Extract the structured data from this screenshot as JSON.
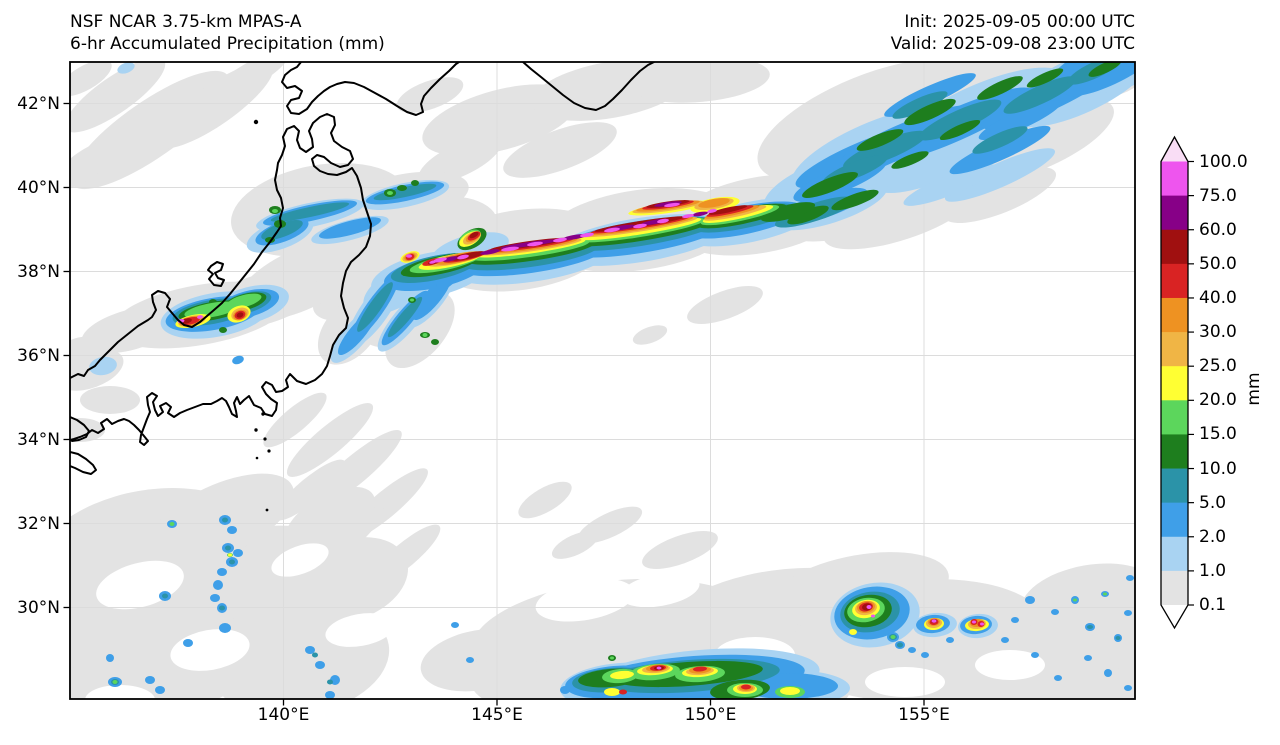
{
  "header": {
    "title_line1": "NSF NCAR 3.75-km MPAS-A",
    "title_line2": "6-hr Accumulated Precipitation (mm)",
    "init_time": "Init: 2025-09-05 00:00 UTC",
    "valid_time": "Valid: 2025-09-08 23:00 UTC"
  },
  "axes": {
    "lat_ticks": [
      "42°N",
      "40°N",
      "38°N",
      "36°N",
      "34°N",
      "32°N",
      "30°N"
    ],
    "lon_ticks": [
      "140°E",
      "145°E",
      "150°E",
      "155°E"
    ]
  },
  "colorbar": {
    "unit_label": "mm",
    "tick_labels": [
      "100.0",
      "75.0",
      "60.0",
      "50.0",
      "40.0",
      "30.0",
      "25.0",
      "20.0",
      "15.0",
      "10.0",
      "5.0",
      "2.0",
      "1.0",
      "0.1"
    ],
    "segment_colors_top_to_bottom": [
      "#ee55ee",
      "#870087",
      "#a01010",
      "#d92323",
      "#ee9222",
      "#f0b545",
      "#ffff33",
      "#5cd65c",
      "#1e7e1e",
      "#2b93a8",
      "#3f9fe8",
      "#a9d3f2",
      "#e3e3e3"
    ],
    "over_arrow_color": "#f9ddf5",
    "under_arrow_color": "#ffffff"
  },
  "chart_data": {
    "type": "heatmap",
    "title": "NSF NCAR 3.75-km MPAS-A — 6-hr Accumulated Precipitation (mm)",
    "init": "2025-09-05 00:00 UTC",
    "valid": "2025-09-08 23:00 UTC",
    "units": "mm",
    "colorbar_levels": [
      0.1,
      1.0,
      2.0,
      5.0,
      10.0,
      15.0,
      20.0,
      25.0,
      30.0,
      40.0,
      50.0,
      60.0,
      75.0,
      100.0
    ],
    "lat_ticks_deg": [
      42,
      40,
      38,
      36,
      34,
      32,
      30
    ],
    "lon_ticks_deg": [
      140,
      145,
      150,
      155
    ],
    "map_region": "Japan and the northwest Pacific (approx. 135-160E, 28-43N)",
    "features": [
      "Intense ENE-oriented frontal rainband east of northern Honshu near 38.5-39.5N from ~143E to ~150E with embedded cores exceeding 60-100 mm (magenta/purple/dark red) wrapped by yellow-orange 20-40 mm shields",
      "Broad streaky band of 2-15 mm rain (blues and dark greens) extending northeast toward the top-right corner near 40-43N, 151-159E",
      "Convective cluster with 40-100 mm cores near 29.5-30N, 153.5-155.5E and scattered light cells to its east",
      "Line of heavy convective cells clipped by the bottom edge near 28-28.5N, 147-151E",
      "Small cluster of 40-100 mm cells over the Noto/Toyama coast near 37N, 137-138.5E",
      "Thin SW-NE shower streaks southeast of Honshu near 36-38N, 142-144E and scattered light showers southwest of Japan",
      "Widespread trace accumulations of 0.1-1 mm (light gray) over much of the domain"
    ]
  }
}
